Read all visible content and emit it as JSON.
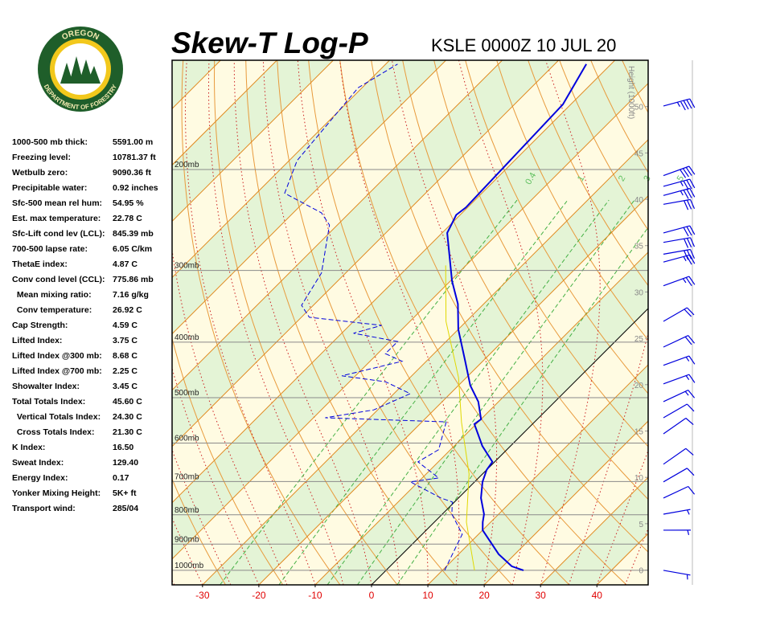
{
  "header": {
    "title": "Skew-T Log-P",
    "station": "KSLE 0000Z 10 JUL 20"
  },
  "logo": {
    "top": "OREGON",
    "bottom": "DEPARTMENT OF FORESTRY"
  },
  "indices": [
    {
      "label": "1000-500 mb thick:",
      "value": "5591.00 m"
    },
    {
      "label": "Freezing level:",
      "value": "10781.37 ft"
    },
    {
      "label": "Wetbulb zero:",
      "value": "9090.36 ft"
    },
    {
      "label": "Precipitable water:",
      "value": "0.92 inches"
    },
    {
      "label": "Sfc-500 mean rel hum:",
      "value": "54.95 %"
    },
    {
      "label": "Est. max temperature:",
      "value": "22.78 C"
    },
    {
      "label": "Sfc-Lift cond lev (LCL):",
      "value": "845.39 mb"
    },
    {
      "label": "700-500 lapse rate:",
      "value": "6.05 C/km"
    },
    {
      "label": "ThetaE index:",
      "value": "4.87 C"
    },
    {
      "label": "Conv cond level (CCL):",
      "value": "775.86 mb"
    },
    {
      "label": "  Mean mixing ratio:",
      "value": "7.16 g/kg"
    },
    {
      "label": "  Conv temperature:",
      "value": "26.92 C"
    },
    {
      "label": "Cap Strength:",
      "value": "4.59 C"
    },
    {
      "label": "Lifted Index:",
      "value": "3.75 C"
    },
    {
      "label": "Lifted Index @300 mb:",
      "value": "8.68 C"
    },
    {
      "label": "Lifted Index @700 mb:",
      "value": "2.25 C"
    },
    {
      "label": "Showalter Index:",
      "value": "3.45 C"
    },
    {
      "label": "Total Totals Index:",
      "value": "45.60 C"
    },
    {
      "label": "  Vertical Totals Index:",
      "value": "24.30 C"
    },
    {
      "label": "  Cross Totals Index:",
      "value": "21.30 C"
    },
    {
      "label": "K Index:",
      "value": "16.50"
    },
    {
      "label": "Sweat Index:",
      "value": "129.40"
    },
    {
      "label": "Energy Index:",
      "value": "0.17"
    },
    {
      "label": "Yonker Mixing Height:",
      "value": "5K+ ft"
    },
    {
      "label": "Transport wind:",
      "value": "285/04"
    }
  ],
  "chart_data": {
    "type": "skew-t",
    "xlim": [
      -35.4,
      49.1
    ],
    "xticks": [
      -30,
      -20,
      -10,
      0,
      10,
      20,
      30,
      40
    ],
    "xtick_color": "#e00000",
    "ylim": [
      1060,
      129
    ],
    "yscale": "log",
    "yticks": [
      {
        "value": 1000,
        "label": "1000mb"
      },
      {
        "value": 900,
        "label": "900mb"
      },
      {
        "value": 800,
        "label": "800mb"
      },
      {
        "value": 700,
        "label": "700mb"
      },
      {
        "value": 600,
        "label": "600mb"
      },
      {
        "value": 500,
        "label": "500mb"
      },
      {
        "value": 400,
        "label": "400mb"
      },
      {
        "value": 300,
        "label": "300mb"
      },
      {
        "value": 200,
        "label": "200mb"
      }
    ],
    "y2label": "Height (1000ft)",
    "y2lim": [
      -1.6,
      55
    ],
    "y2ticks": [
      0,
      5,
      10,
      15,
      20,
      25,
      30,
      35,
      40,
      45,
      50
    ],
    "mixing_ratio_lines": [
      0.4,
      1,
      2,
      3,
      5
    ],
    "series": [
      {
        "color": "#0000dd",
        "style": "solid",
        "pressure": [
          1000,
          984,
          937,
          851,
          824,
          798,
          748,
          701,
          668,
          647,
          607,
          556,
          545,
          508,
          476,
          432,
          380,
          343,
          313,
          258,
          251,
          240,
          233,
          154,
          131
        ],
        "values": [
          24.4,
          21.6,
          17.1,
          10.0,
          8.6,
          7.4,
          4.0,
          1.4,
          0,
          -0.4,
          -5.0,
          -10.3,
          -10.0,
          -13.6,
          -17.9,
          -23.1,
          -30.0,
          -34.6,
          -39.7,
          -49.1,
          -49.7,
          -50.7,
          -50.3,
          -51.4,
          -54.4
        ]
      },
      {
        "color": "#0000dd",
        "style": "dashed",
        "pressure": [
          1000,
          937,
          865,
          798,
          760,
          748,
          701,
          690,
          647,
          616,
          551,
          542,
          525,
          492,
          469,
          458,
          432,
          419,
          399,
          386,
          374,
          362,
          345,
          303,
          250,
          238,
          220,
          193,
          144,
          131
        ],
        "values": [
          10.4,
          8.9,
          7.1,
          1.7,
          -0.4,
          -3.1,
          -11.4,
          -7.1,
          -13.6,
          -12.1,
          -15.7,
          -37.9,
          -30.7,
          -27.1,
          -33.6,
          -42.4,
          -34.3,
          -38.6,
          -38.6,
          -47.9,
          -44.3,
          -58.6,
          -62.1,
          -64.3,
          -71.4,
          -75.0,
          -85.0,
          -88.6,
          -90.7,
          -87.9
        ]
      },
      {
        "color": "#e0d800",
        "style": "solid",
        "pressure": [
          1000,
          824,
          679,
          552,
          461,
          368,
          294
        ],
        "values": [
          15.7,
          5.7,
          -2.4,
          -12.9,
          -21.4,
          -33.6,
          -43.6
        ]
      }
    ],
    "wind": {
      "color": "#0000dd",
      "pressure": [
        155,
        205,
        214,
        222,
        230,
        258,
        268,
        281,
        290,
        319,
        368,
        408,
        439,
        473,
        508,
        542,
        578,
        653,
        701,
        748,
        798,
        851,
        1000
      ],
      "direction": [
        255,
        250,
        255,
        255,
        260,
        255,
        260,
        260,
        255,
        250,
        240,
        245,
        250,
        250,
        245,
        240,
        235,
        235,
        240,
        245,
        260,
        270,
        280
      ],
      "speed": [
        45,
        40,
        35,
        35,
        30,
        30,
        30,
        30,
        25,
        25,
        20,
        20,
        15,
        15,
        15,
        10,
        10,
        10,
        10,
        10,
        5,
        5,
        5
      ]
    }
  }
}
